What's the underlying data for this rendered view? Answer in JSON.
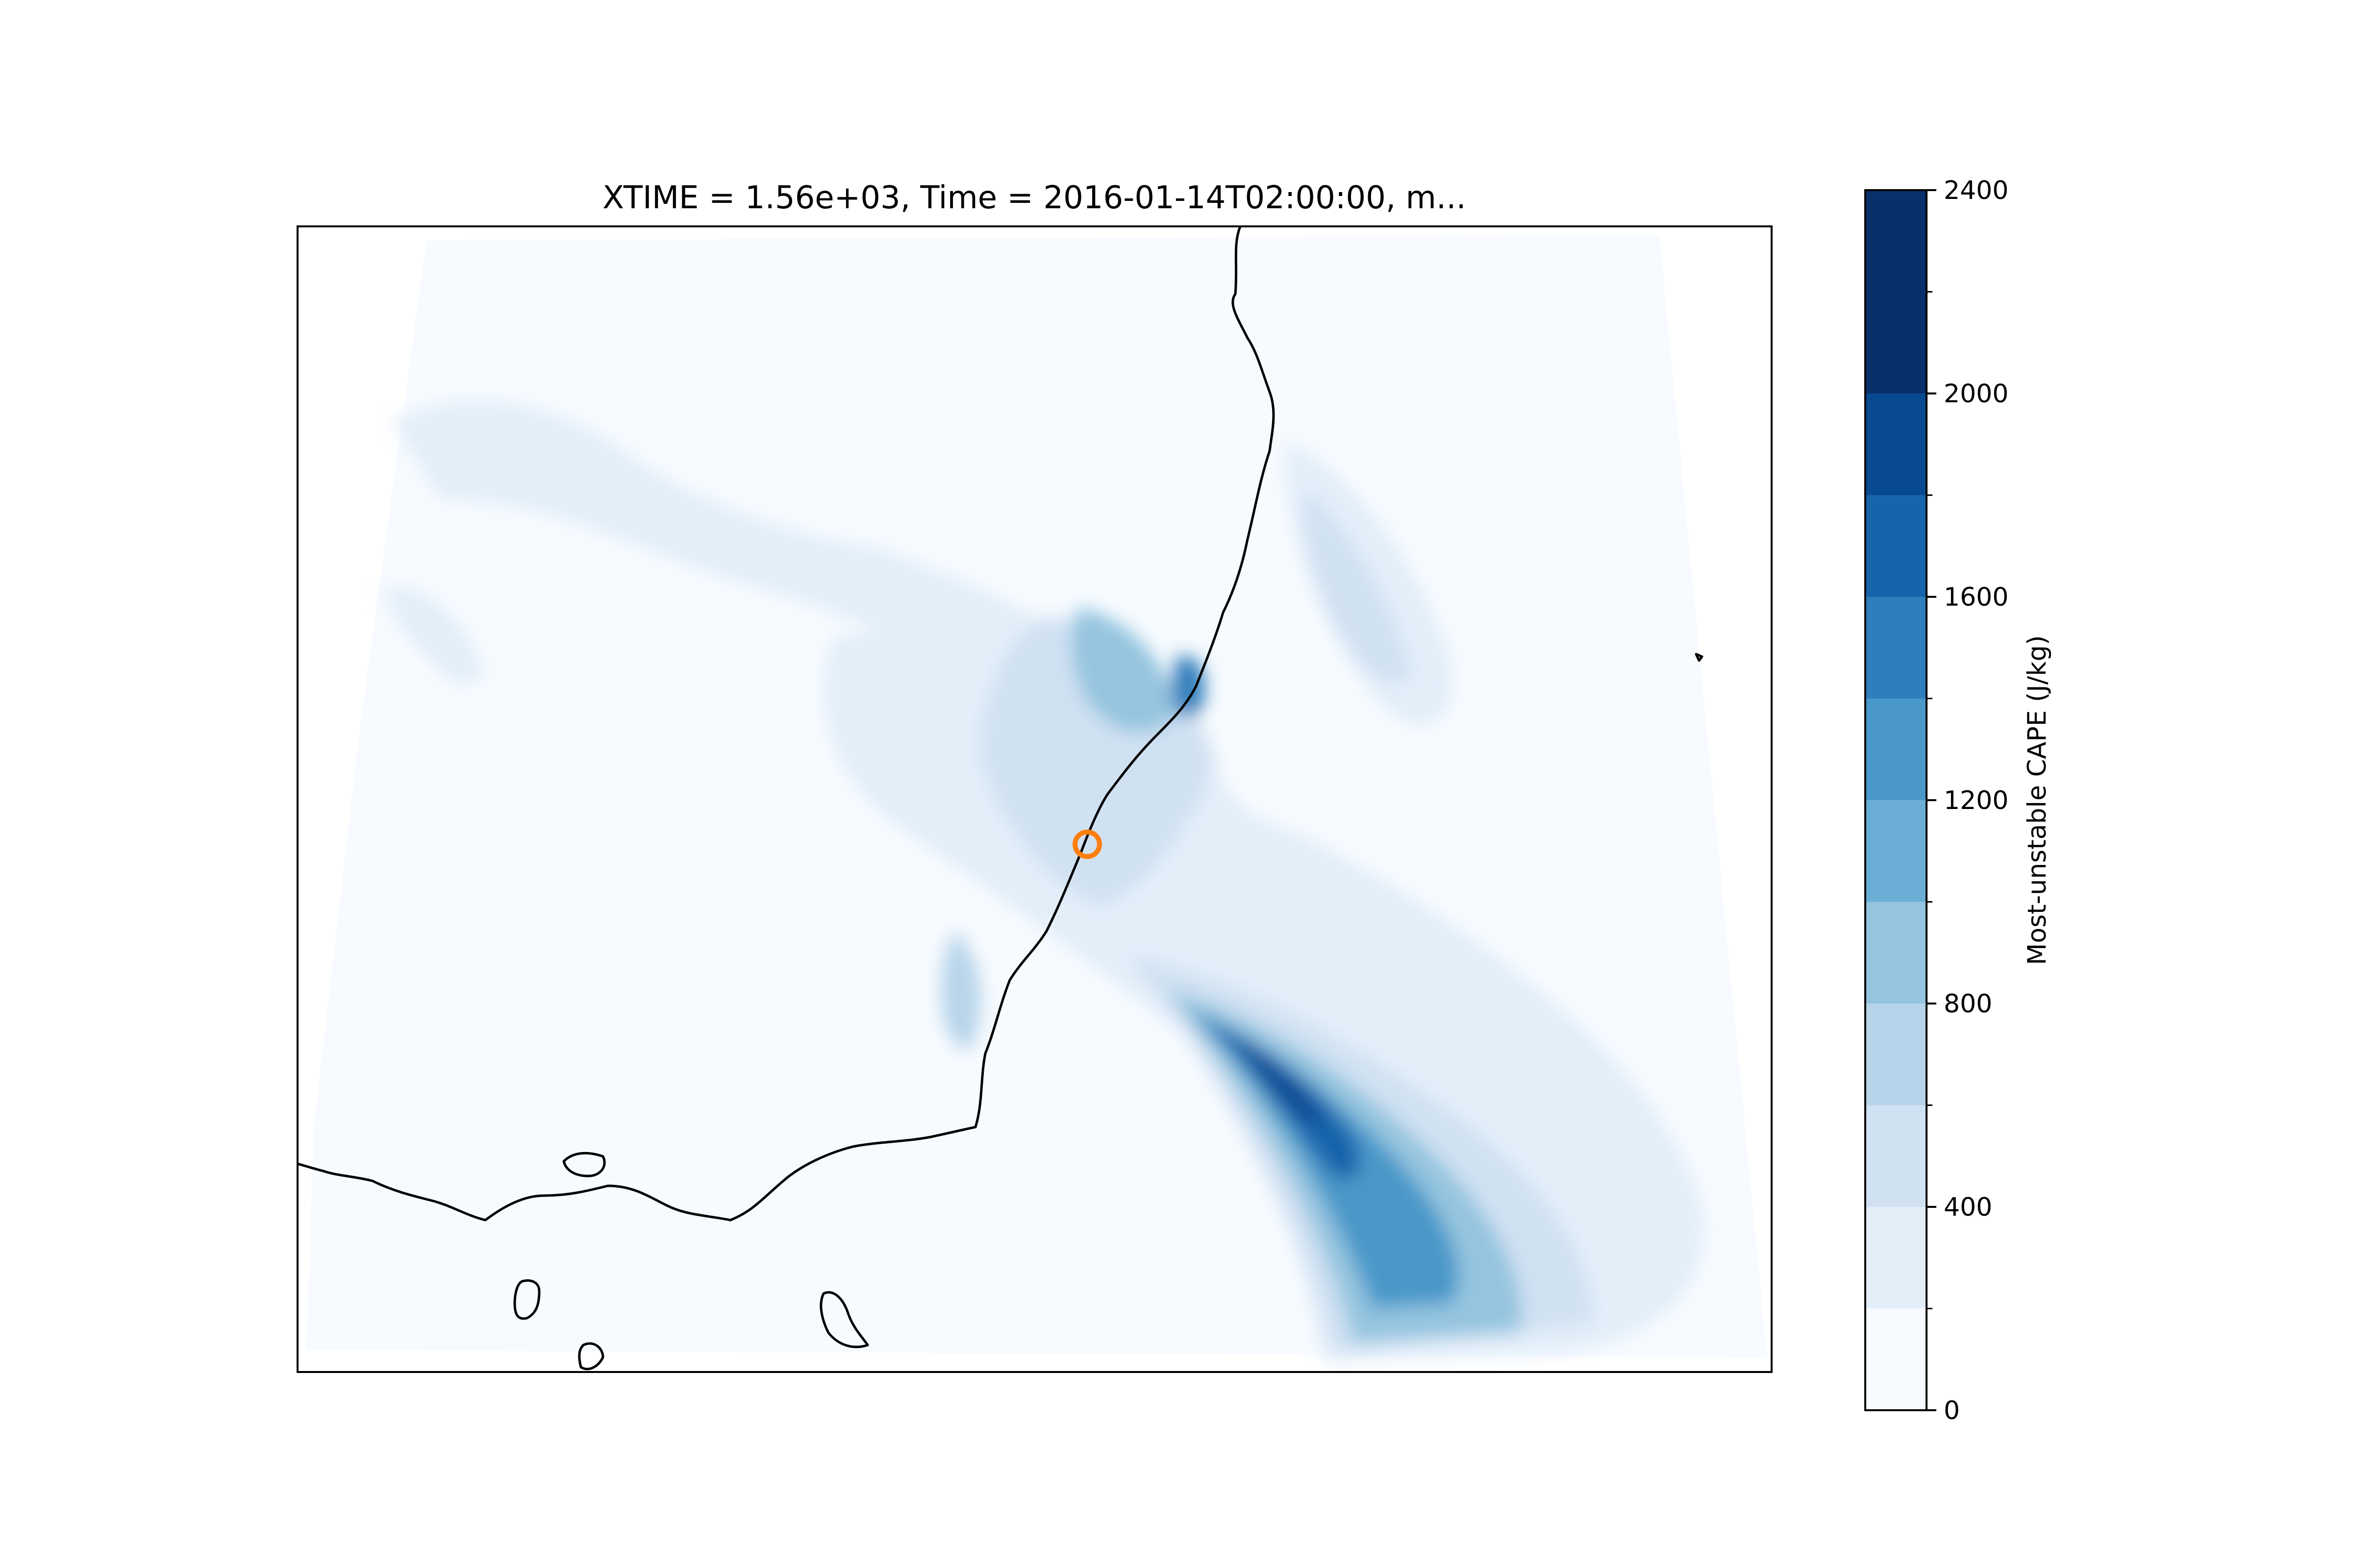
{
  "title": "XTIME = 1.56e+03, Time = 2016-01-14T02:00:00, m...",
  "colorbar": {
    "label": "Most-unstable CAPE (J/kg)",
    "ticks": [
      "0",
      "400",
      "800",
      "1200",
      "1600",
      "2000",
      "2400"
    ],
    "min": 0,
    "max": 2400,
    "levels": [
      0,
      200,
      400,
      600,
      800,
      1000,
      1200,
      1400,
      1600,
      1800,
      2000,
      2200,
      2400
    ],
    "colors": [
      "#f7fbff",
      "#e3eef9",
      "#d0e1f2",
      "#b7d4ea",
      "#94c4df",
      "#6aaed6",
      "#4a98c9",
      "#2e7ebc",
      "#1764ab",
      "#084a91",
      "#08306b",
      "#08306b"
    ]
  },
  "map": {
    "marker": {
      "name": "location",
      "color": "#ff7f0e"
    },
    "coastline_color": "#000000"
  }
}
